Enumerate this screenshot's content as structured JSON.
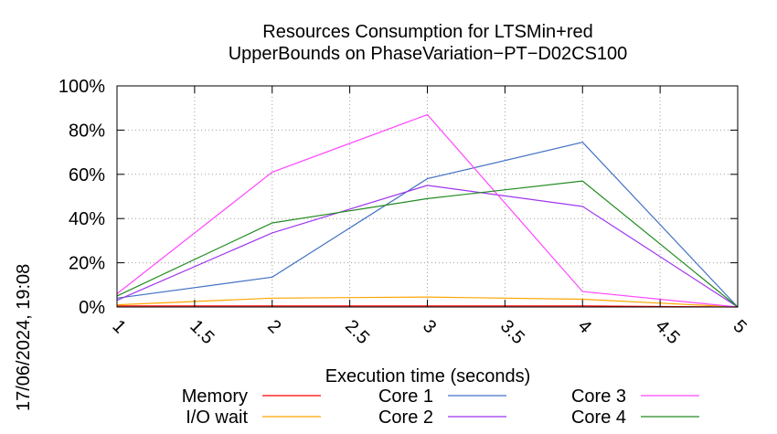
{
  "chart_data": {
    "type": "line",
    "title": [
      "Resources Consumption for LTSMin+red",
      "UpperBounds on PhaseVariation−PT−D02CS100"
    ],
    "xlabel": "Execution time (seconds)",
    "ylabel": "",
    "xlim": [
      1,
      5
    ],
    "ylim": [
      0,
      100
    ],
    "x_ticks": [
      "1",
      "1.5",
      "2",
      "2.5",
      "3",
      "3.5",
      "4",
      "4.5",
      "5"
    ],
    "y_ticks": [
      "0%",
      "20%",
      "40%",
      "60%",
      "80%",
      "100%"
    ],
    "grid": true,
    "legend_position": "bottom",
    "timestamp": "17/06/2024, 19:08",
    "x": [
      1,
      2,
      3,
      4,
      5
    ],
    "series": [
      {
        "name": "Memory",
        "color": "#ff0000",
        "values": [
          0.5,
          0.5,
          0.5,
          0.5,
          0
        ]
      },
      {
        "name": "I/O wait",
        "color": "#ffa500",
        "values": [
          1,
          4,
          4.5,
          3.5,
          0
        ]
      },
      {
        "name": "Core 1",
        "color": "#4472c4",
        "values": [
          4,
          13.5,
          58,
          74.5,
          0
        ]
      },
      {
        "name": "Core 2",
        "color": "#9f35ee",
        "values": [
          3,
          33.5,
          55,
          45.5,
          0
        ]
      },
      {
        "name": "Core 3",
        "color": "#ff48ff",
        "values": [
          6,
          61,
          87,
          7,
          0
        ]
      },
      {
        "name": "Core 4",
        "color": "#228b22",
        "values": [
          5,
          38,
          49,
          57,
          0
        ]
      }
    ]
  }
}
